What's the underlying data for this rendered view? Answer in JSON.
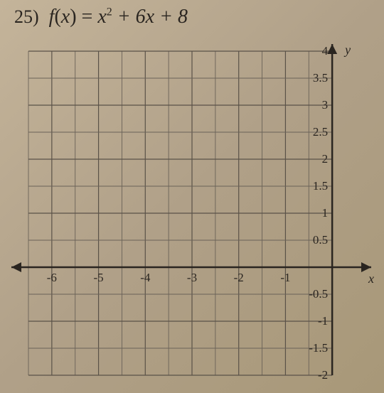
{
  "problem": {
    "number": "25)",
    "equation_prefix": "f",
    "equation_lparen": "(",
    "equation_var": "x",
    "equation_rparen": ")",
    "equation_eq": " = ",
    "equation_x": "x",
    "equation_sq": "2",
    "equation_rest": " + 6x + 8"
  },
  "chart": {
    "type": "grid",
    "x_axis_label": "x",
    "y_axis_label": "y",
    "xlim": [
      -6.5,
      0.5
    ],
    "ylim": [
      -2,
      4
    ],
    "x_ticks": [
      {
        "v": -6,
        "label": "-6"
      },
      {
        "v": -5,
        "label": "-5"
      },
      {
        "v": -4,
        "label": "-4"
      },
      {
        "v": -3,
        "label": "-3"
      },
      {
        "v": -2,
        "label": "-2"
      },
      {
        "v": -1,
        "label": "-1"
      }
    ],
    "y_ticks": [
      {
        "v": 4,
        "label": "4"
      },
      {
        "v": 3.5,
        "label": "3.5"
      },
      {
        "v": 3,
        "label": "3"
      },
      {
        "v": 2.5,
        "label": "2.5"
      },
      {
        "v": 2,
        "label": "2"
      },
      {
        "v": 1.5,
        "label": "1.5"
      },
      {
        "v": 1,
        "label": "1"
      },
      {
        "v": 0.5,
        "label": "0.5"
      },
      {
        "v": -0.5,
        "label": "-0.5"
      },
      {
        "v": -1,
        "label": "-1"
      },
      {
        "v": -1.5,
        "label": "-1.5"
      },
      {
        "v": -2,
        "label": "-2"
      }
    ],
    "x_grid_step": 0.5,
    "y_grid_step": 0.5,
    "background_color": "#b8a890",
    "grid_color": "#5a5248",
    "axis_color": "#2a2520",
    "label_fontsize": 17
  }
}
